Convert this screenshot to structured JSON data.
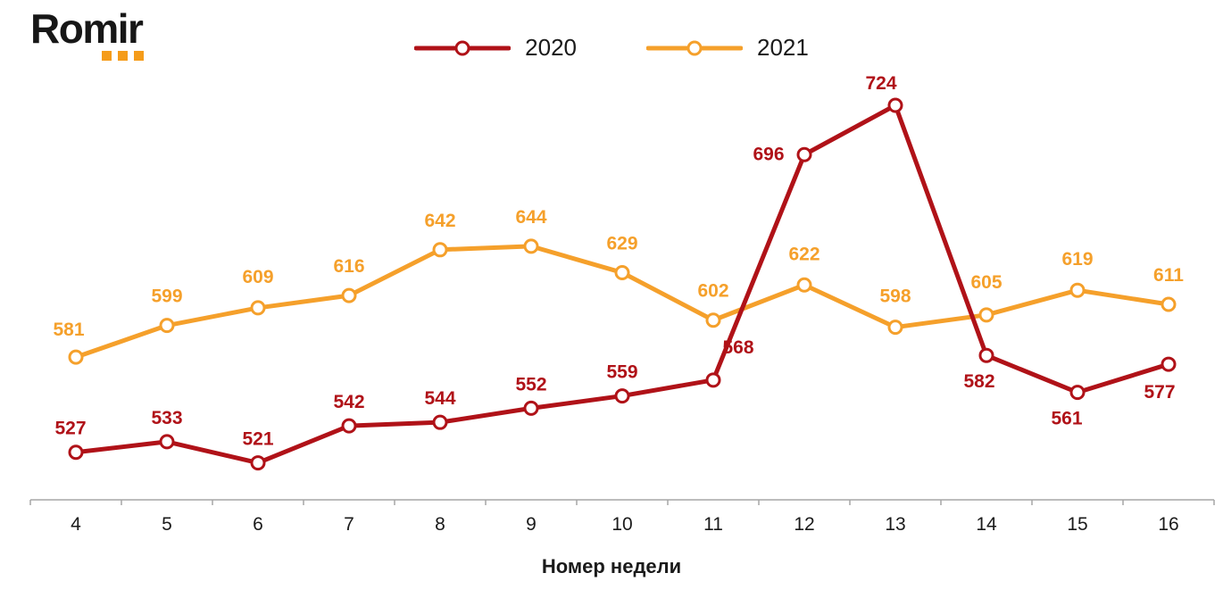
{
  "header": {
    "logo_text": "Romir",
    "logo_dot_color": "#F59C1A"
  },
  "chart_data": {
    "type": "line",
    "x": [
      4,
      5,
      6,
      7,
      8,
      9,
      10,
      11,
      12,
      13,
      14,
      15,
      16
    ],
    "xlabel": "Номер недели",
    "ylim": [
      500,
      750
    ],
    "grid": false,
    "legend_position": "top-center",
    "marker": "open-circle",
    "series": [
      {
        "name": "2020",
        "color": "#B01218",
        "values": [
          527,
          533,
          521,
          542,
          544,
          552,
          559,
          568,
          696,
          724,
          582,
          561,
          577
        ]
      },
      {
        "name": "2021",
        "color": "#F5A02B",
        "values": [
          581,
          599,
          609,
          616,
          642,
          644,
          629,
          602,
          622,
          598,
          605,
          619,
          611
        ]
      }
    ],
    "label_offsets": {
      "2020": [
        [
          -6,
          -20
        ],
        [
          0,
          -20
        ],
        [
          0,
          -20
        ],
        [
          0,
          -20
        ],
        [
          0,
          -20
        ],
        [
          0,
          -20
        ],
        [
          0,
          -20
        ],
        [
          28,
          -30
        ],
        [
          -40,
          6
        ],
        [
          -16,
          -18
        ],
        [
          -8,
          36
        ],
        [
          -12,
          36
        ],
        [
          -10,
          38
        ]
      ],
      "2021": [
        [
          -8,
          -24
        ],
        [
          0,
          -26
        ],
        [
          0,
          -28
        ],
        [
          0,
          -26
        ],
        [
          0,
          -26
        ],
        [
          0,
          -26
        ],
        [
          0,
          -26
        ],
        [
          0,
          -26
        ],
        [
          0,
          -28
        ],
        [
          0,
          -28
        ],
        [
          0,
          -30
        ],
        [
          0,
          -28
        ],
        [
          0,
          -26
        ]
      ]
    }
  }
}
